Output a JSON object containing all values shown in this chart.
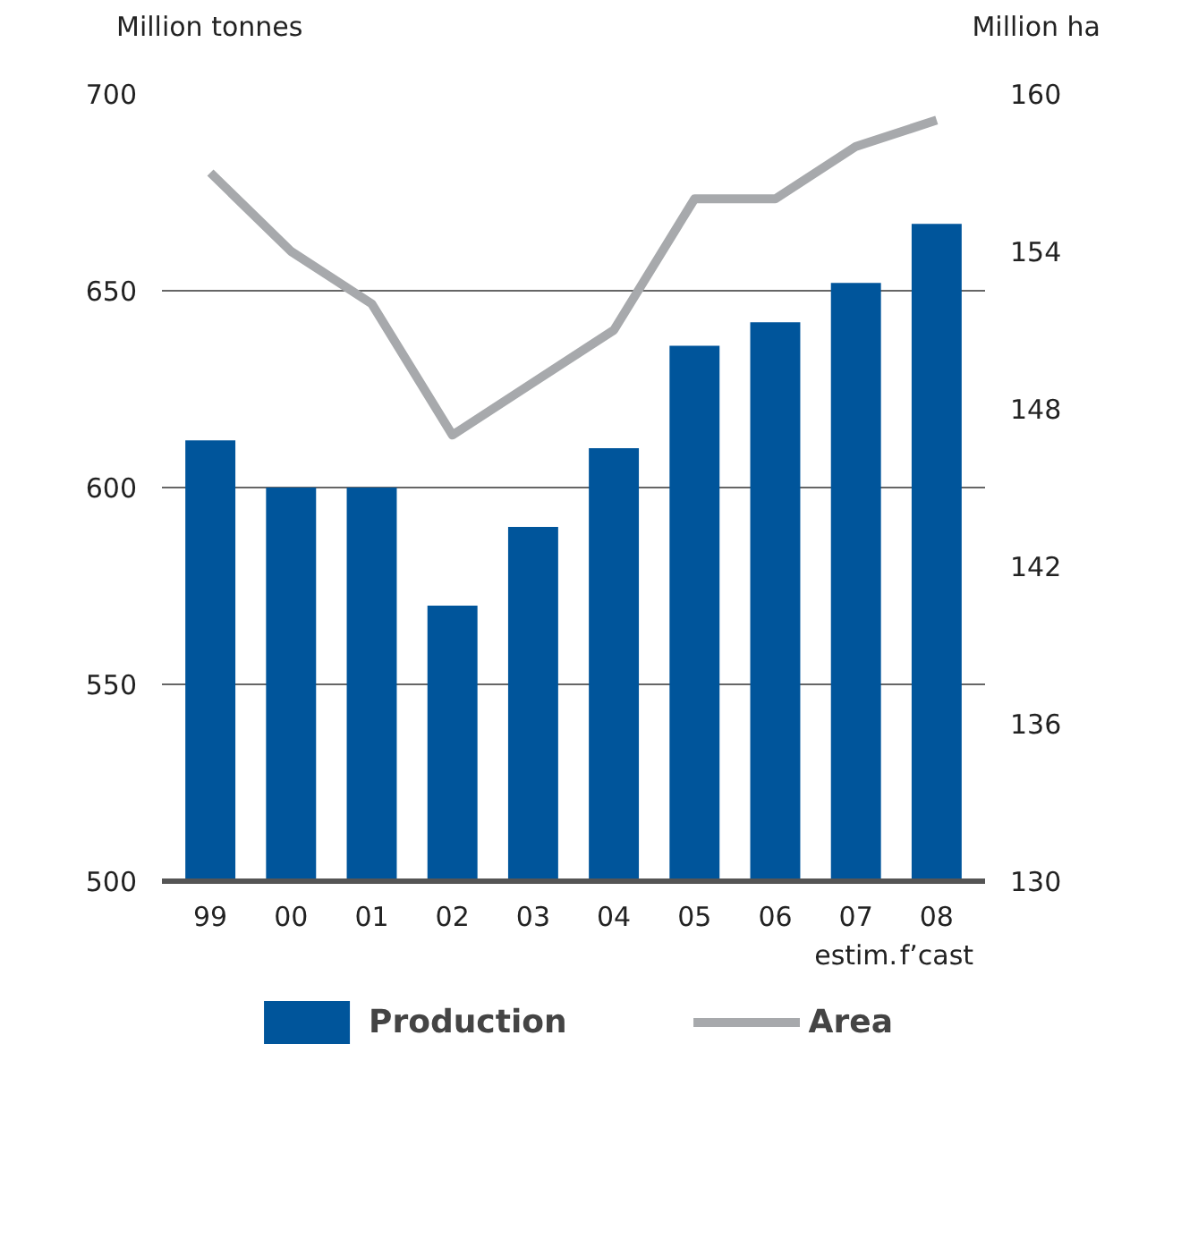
{
  "chart_data": {
    "type": "bar",
    "ylabel": "Million tonnes",
    "y2label": "Million ha",
    "categories": [
      "99",
      "00",
      "01",
      "02",
      "03",
      "04",
      "05",
      "06",
      "07\nestim.",
      "08\nf’cast"
    ],
    "series": [
      {
        "name": "Production",
        "color": "#00559b",
        "values": [
          612,
          600,
          600,
          570,
          590,
          610,
          636,
          642,
          652,
          667
        ]
      },
      {
        "name": "Area",
        "type": "line",
        "axis": "y2",
        "color": "#a7a9ac",
        "values": [
          157,
          154,
          152,
          147,
          149,
          151,
          156,
          156,
          158,
          159
        ]
      }
    ],
    "ylim": [
      500,
      700
    ],
    "yticks": [
      500,
      550,
      600,
      650,
      700
    ],
    "y2lim": [
      130,
      160
    ],
    "y2ticks": [
      130,
      136,
      142,
      148,
      154,
      160
    ],
    "grid": "y",
    "legend": "bottom"
  }
}
